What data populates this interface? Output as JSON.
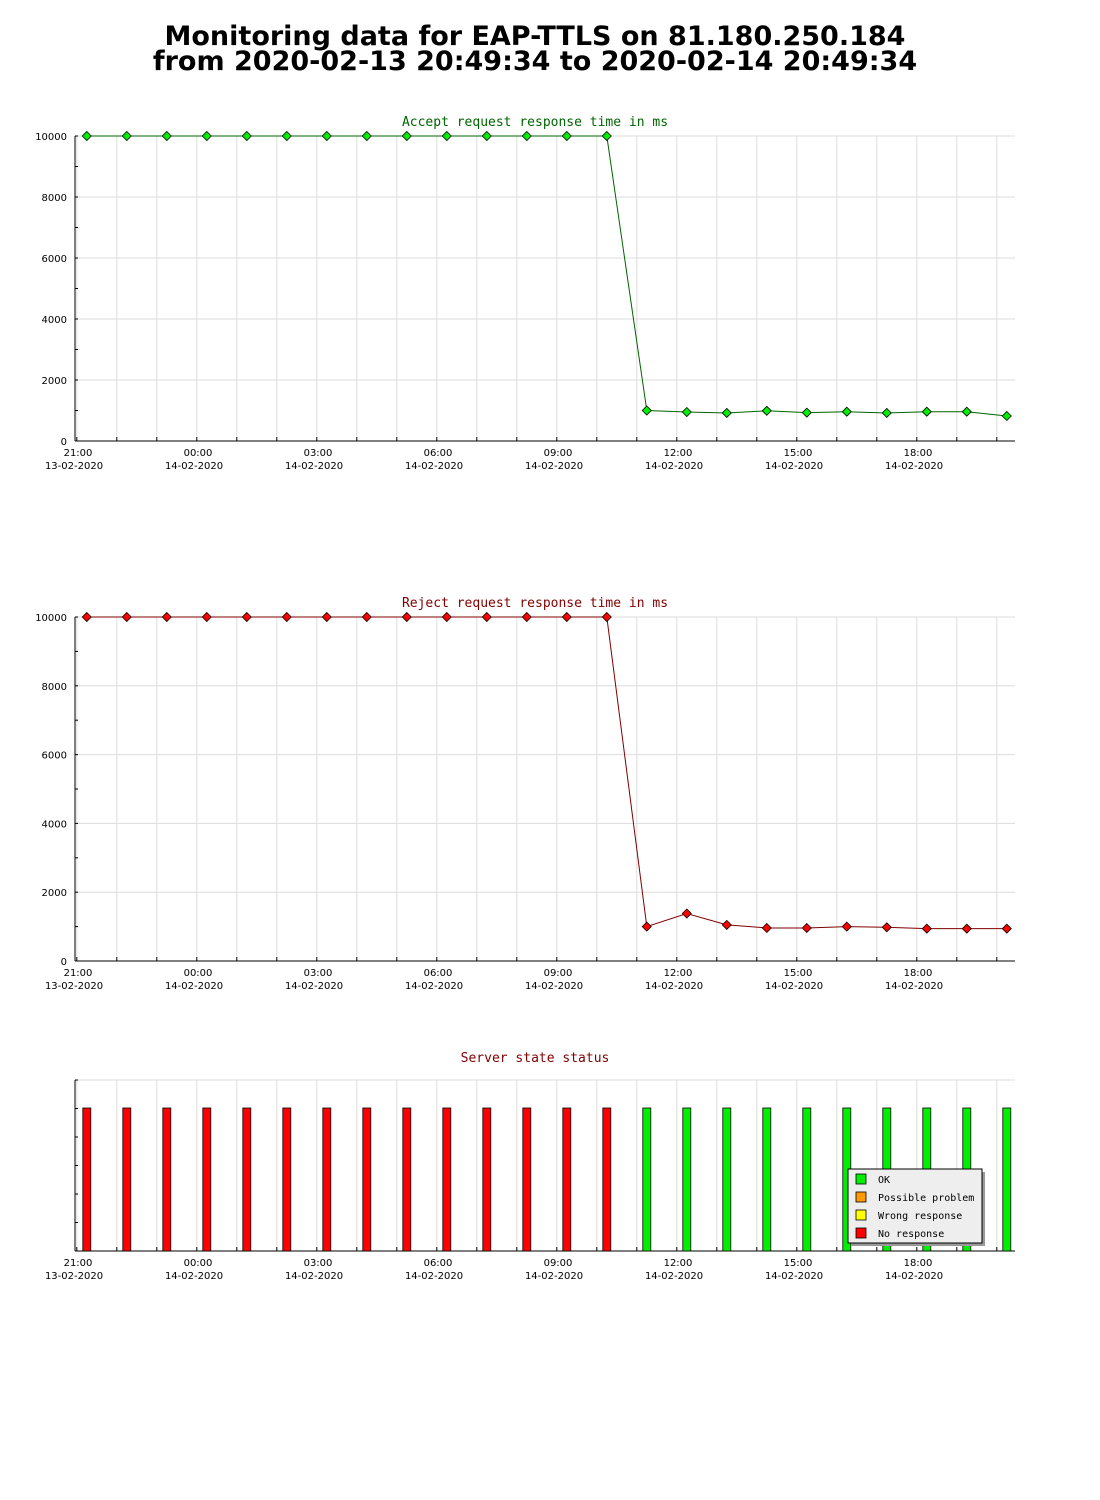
{
  "page": {
    "title_line1": "Monitoring data for EAP-TTLS on 81.180.250.184",
    "title_line2": "from 2020-02-13 20:49:34 to 2020-02-14 20:49:34"
  },
  "colors": {
    "accept_marker": "#00ee00",
    "accept_line": "#006400",
    "accept_title": "#006400",
    "reject_marker": "#ff0000",
    "reject_line": "#800000",
    "reject_title": "#800000",
    "status_title": "#800000",
    "grid": "#dddddd"
  },
  "chart_data": [
    {
      "type": "line",
      "title": "Accept request response time in ms",
      "xlabel": "",
      "ylabel": "",
      "x": [
        0.22,
        1.22,
        2.22,
        3.22,
        4.22,
        5.22,
        6.22,
        7.22,
        8.22,
        9.22,
        10.22,
        11.22,
        12.22,
        13.22,
        14.22,
        15.22,
        16.22,
        17.22,
        18.22,
        19.22,
        20.22,
        21.22,
        22.22,
        23.22
      ],
      "series": [
        {
          "values": [
            10000,
            10000,
            10000,
            10000,
            10000,
            10000,
            10000,
            10000,
            10000,
            10000,
            10000,
            10000,
            10000,
            10000,
            1000,
            950,
            920,
            990,
            930,
            960,
            920,
            960,
            960,
            820
          ]
        }
      ],
      "ylim": [
        0,
        10000
      ],
      "yticks": [
        0,
        2000,
        4000,
        6000,
        8000,
        10000
      ],
      "xlim": [
        0,
        23.5
      ],
      "xticks": [
        {
          "at": 0,
          "time": "21:00",
          "date": "13-02-2020"
        },
        {
          "at": 3,
          "time": "00:00",
          "date": "14-02-2020"
        },
        {
          "at": 6,
          "time": "03:00",
          "date": "14-02-2020"
        },
        {
          "at": 9,
          "time": "06:00",
          "date": "14-02-2020"
        },
        {
          "at": 12,
          "time": "09:00",
          "date": "14-02-2020"
        },
        {
          "at": 15,
          "time": "12:00",
          "date": "14-02-2020"
        },
        {
          "at": 18,
          "time": "15:00",
          "date": "14-02-2020"
        },
        {
          "at": 21,
          "time": "18:00",
          "date": "14-02-2020"
        }
      ],
      "grid": true
    },
    {
      "type": "line",
      "title": "Reject request response time in ms",
      "xlabel": "",
      "ylabel": "",
      "x": [
        0.22,
        1.22,
        2.22,
        3.22,
        4.22,
        5.22,
        6.22,
        7.22,
        8.22,
        9.22,
        10.22,
        11.22,
        12.22,
        13.22,
        14.22,
        15.22,
        16.22,
        17.22,
        18.22,
        19.22,
        20.22,
        21.22,
        22.22,
        23.22
      ],
      "series": [
        {
          "values": [
            10000,
            10000,
            10000,
            10000,
            10000,
            10000,
            10000,
            10000,
            10000,
            10000,
            10000,
            10000,
            10000,
            10000,
            1000,
            1380,
            1050,
            960,
            960,
            1000,
            980,
            940,
            940,
            940
          ]
        }
      ],
      "ylim": [
        0,
        10000
      ],
      "yticks": [
        0,
        2000,
        4000,
        6000,
        8000,
        10000
      ],
      "xlim": [
        0,
        23.5
      ],
      "xticks": [
        {
          "at": 0,
          "time": "21:00",
          "date": "13-02-2020"
        },
        {
          "at": 3,
          "time": "00:00",
          "date": "14-02-2020"
        },
        {
          "at": 6,
          "time": "03:00",
          "date": "14-02-2020"
        },
        {
          "at": 9,
          "time": "06:00",
          "date": "14-02-2020"
        },
        {
          "at": 12,
          "time": "09:00",
          "date": "14-02-2020"
        },
        {
          "at": 15,
          "time": "12:00",
          "date": "14-02-2020"
        },
        {
          "at": 18,
          "time": "15:00",
          "date": "14-02-2020"
        },
        {
          "at": 21,
          "time": "18:00",
          "date": "14-02-2020"
        }
      ],
      "grid": true
    },
    {
      "type": "bar",
      "title": "Server state status",
      "x": [
        0.22,
        1.22,
        2.22,
        3.22,
        4.22,
        5.22,
        6.22,
        7.22,
        8.22,
        9.22,
        10.22,
        11.22,
        12.22,
        13.22,
        14.22,
        15.22,
        16.22,
        17.22,
        18.22,
        19.22,
        20.22,
        21.22,
        22.22,
        23.22
      ],
      "states": [
        "No response",
        "No response",
        "No response",
        "No response",
        "No response",
        "No response",
        "No response",
        "No response",
        "No response",
        "No response",
        "No response",
        "No response",
        "No response",
        "No response",
        "OK",
        "OK",
        "OK",
        "OK",
        "OK",
        "OK",
        "OK",
        "OK",
        "OK",
        "OK"
      ],
      "xlim": [
        0,
        23.5
      ],
      "xticks": [
        {
          "at": 0,
          "time": "21:00",
          "date": "13-02-2020"
        },
        {
          "at": 3,
          "time": "00:00",
          "date": "14-02-2020"
        },
        {
          "at": 6,
          "time": "03:00",
          "date": "14-02-2020"
        },
        {
          "at": 9,
          "time": "06:00",
          "date": "14-02-2020"
        },
        {
          "at": 12,
          "time": "09:00",
          "date": "14-02-2020"
        },
        {
          "at": 15,
          "time": "12:00",
          "date": "14-02-2020"
        },
        {
          "at": 18,
          "time": "15:00",
          "date": "14-02-2020"
        },
        {
          "at": 21,
          "time": "18:00",
          "date": "14-02-2020"
        }
      ],
      "legend_position": "bottom-right",
      "legend": [
        {
          "label": "OK",
          "color": "#00ee00"
        },
        {
          "label": "Possible problem",
          "color": "#ff9900"
        },
        {
          "label": "Wrong response",
          "color": "#ffff00"
        },
        {
          "label": "No response",
          "color": "#ff0000"
        }
      ]
    }
  ]
}
